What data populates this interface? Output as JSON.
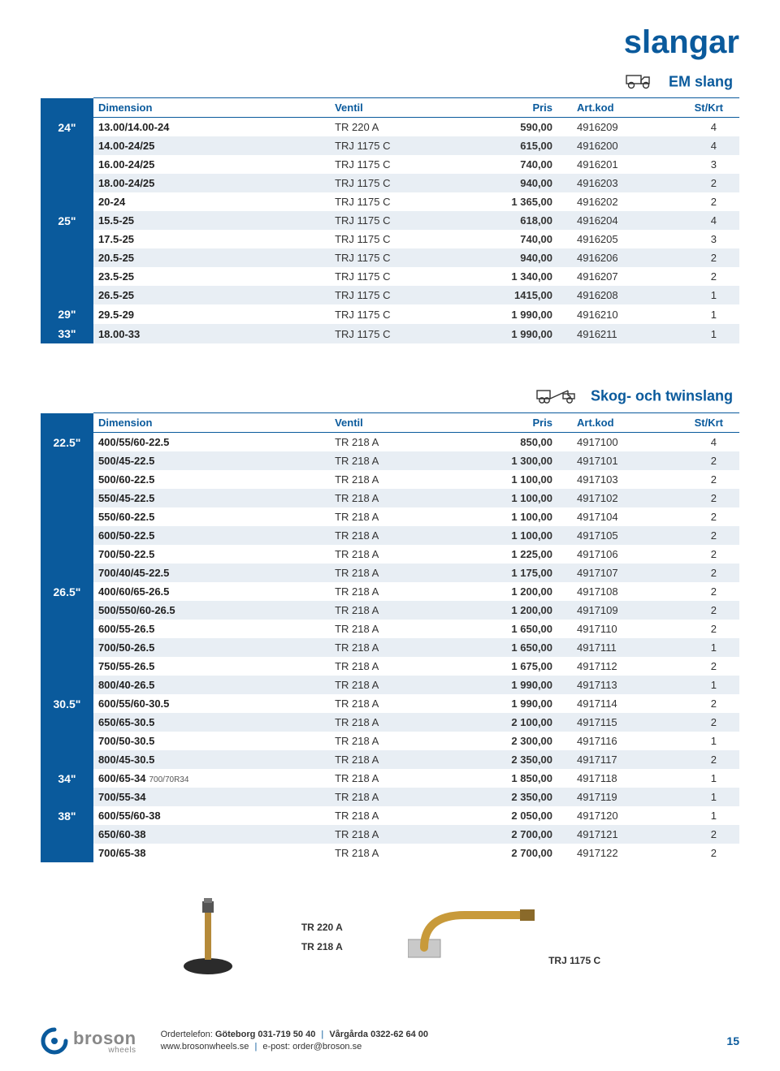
{
  "page_title": "slangar",
  "colors": {
    "brand": "#0a5a9c",
    "stripe_odd": "#e8eef4",
    "stripe_even": "#ffffff",
    "text": "#333333"
  },
  "tables": [
    {
      "section_label": "EM slang",
      "icon": "dump-truck",
      "columns": [
        "Dimension",
        "Ventil",
        "Pris",
        "Art.kod",
        "St/Krt"
      ],
      "groups": [
        {
          "size": "24\"",
          "rows": [
            {
              "dim": "13.00/14.00-24",
              "vent": "TR 220 A",
              "pris": "590,00",
              "art": "4916209",
              "st": "4"
            },
            {
              "dim": "14.00-24/25",
              "vent": "TRJ 1175 C",
              "pris": "615,00",
              "art": "4916200",
              "st": "4"
            },
            {
              "dim": "16.00-24/25",
              "vent": "TRJ 1175 C",
              "pris": "740,00",
              "art": "4916201",
              "st": "3"
            },
            {
              "dim": "18.00-24/25",
              "vent": "TRJ 1175 C",
              "pris": "940,00",
              "art": "4916203",
              "st": "2"
            },
            {
              "dim": "20-24",
              "vent": "TRJ 1175 C",
              "pris": "1 365,00",
              "art": "4916202",
              "st": "2"
            }
          ]
        },
        {
          "size": "25\"",
          "rows": [
            {
              "dim": "15.5-25",
              "vent": "TRJ 1175 C",
              "pris": "618,00",
              "art": "4916204",
              "st": "4"
            },
            {
              "dim": "17.5-25",
              "vent": "TRJ 1175 C",
              "pris": "740,00",
              "art": "4916205",
              "st": "3"
            },
            {
              "dim": "20.5-25",
              "vent": "TRJ 1175 C",
              "pris": "940,00",
              "art": "4916206",
              "st": "2"
            },
            {
              "dim": "23.5-25",
              "vent": "TRJ 1175 C",
              "pris": "1 340,00",
              "art": "4916207",
              "st": "2"
            },
            {
              "dim": "26.5-25",
              "vent": "TRJ 1175 C",
              "pris": "1415,00",
              "art": "4916208",
              "st": "1"
            }
          ]
        },
        {
          "size": "29\"",
          "rows": [
            {
              "dim": "29.5-29",
              "vent": "TRJ 1175 C",
              "pris": "1 990,00",
              "art": "4916210",
              "st": "1"
            }
          ]
        },
        {
          "size": "33\"",
          "rows": [
            {
              "dim": "18.00-33",
              "vent": "TRJ 1175 C",
              "pris": "1 990,00",
              "art": "4916211",
              "st": "1"
            }
          ]
        }
      ]
    },
    {
      "section_label": "Skog- och twinslang",
      "icon": "tow-truck",
      "columns": [
        "Dimension",
        "Ventil",
        "Pris",
        "Art.kod",
        "St/Krt"
      ],
      "groups": [
        {
          "size": "22.5\"",
          "rows": [
            {
              "dim": "400/55/60-22.5",
              "vent": "TR 218 A",
              "pris": "850,00",
              "art": "4917100",
              "st": "4"
            },
            {
              "dim": "500/45-22.5",
              "vent": "TR 218 A",
              "pris": "1 300,00",
              "art": "4917101",
              "st": "2"
            },
            {
              "dim": "500/60-22.5",
              "vent": "TR 218 A",
              "pris": "1 100,00",
              "art": "4917103",
              "st": "2"
            },
            {
              "dim": "550/45-22.5",
              "vent": "TR 218 A",
              "pris": "1 100,00",
              "art": "4917102",
              "st": "2"
            },
            {
              "dim": "550/60-22.5",
              "vent": "TR 218 A",
              "pris": "1 100,00",
              "art": "4917104",
              "st": "2"
            },
            {
              "dim": "600/50-22.5",
              "vent": "TR 218 A",
              "pris": "1 100,00",
              "art": "4917105",
              "st": "2"
            },
            {
              "dim": "700/50-22.5",
              "vent": "TR 218 A",
              "pris": "1 225,00",
              "art": "4917106",
              "st": "2"
            },
            {
              "dim": "700/40/45-22.5",
              "vent": "TR 218 A",
              "pris": "1 175,00",
              "art": "4917107",
              "st": "2"
            }
          ]
        },
        {
          "size": "26.5\"",
          "rows": [
            {
              "dim": "400/60/65-26.5",
              "vent": "TR 218 A",
              "pris": "1 200,00",
              "art": "4917108",
              "st": "2"
            },
            {
              "dim": "500/550/60-26.5",
              "vent": "TR 218 A",
              "pris": "1 200,00",
              "art": "4917109",
              "st": "2"
            },
            {
              "dim": "600/55-26.5",
              "vent": "TR 218 A",
              "pris": "1 650,00",
              "art": "4917110",
              "st": "2"
            },
            {
              "dim": "700/50-26.5",
              "vent": "TR 218 A",
              "pris": "1 650,00",
              "art": "4917111",
              "st": "1"
            },
            {
              "dim": "750/55-26.5",
              "vent": "TR 218 A",
              "pris": "1 675,00",
              "art": "4917112",
              "st": "2"
            },
            {
              "dim": "800/40-26.5",
              "vent": "TR 218 A",
              "pris": "1 990,00",
              "art": "4917113",
              "st": "1"
            }
          ]
        },
        {
          "size": "30.5\"",
          "rows": [
            {
              "dim": "600/55/60-30.5",
              "vent": "TR 218 A",
              "pris": "1 990,00",
              "art": "4917114",
              "st": "2"
            },
            {
              "dim": "650/65-30.5",
              "vent": "TR 218 A",
              "pris": "2 100,00",
              "art": "4917115",
              "st": "2"
            },
            {
              "dim": "700/50-30.5",
              "vent": "TR 218 A",
              "pris": "2 300,00",
              "art": "4917116",
              "st": "1"
            },
            {
              "dim": "800/45-30.5",
              "vent": "TR 218 A",
              "pris": "2 350,00",
              "art": "4917117",
              "st": "2"
            }
          ]
        },
        {
          "size": "34\"",
          "rows": [
            {
              "dim": "600/65-34",
              "subnote": "700/70R34",
              "vent": "TR 218 A",
              "pris": "1 850,00",
              "art": "4917118",
              "st": "1"
            },
            {
              "dim": "700/55-34",
              "vent": "TR 218 A",
              "pris": "2 350,00",
              "art": "4917119",
              "st": "1"
            }
          ]
        },
        {
          "size": "38\"",
          "rows": [
            {
              "dim": "600/55/60-38",
              "vent": "TR 218 A",
              "pris": "2 050,00",
              "art": "4917120",
              "st": "1"
            },
            {
              "dim": "650/60-38",
              "vent": "TR 218 A",
              "pris": "2 700,00",
              "art": "4917121",
              "st": "2"
            },
            {
              "dim": "700/65-38",
              "vent": "TR 218 A",
              "pris": "2 700,00",
              "art": "4917122",
              "st": "2"
            }
          ]
        }
      ]
    }
  ],
  "valve_labels": {
    "a": "TR 220 A",
    "b": "TR 218 A",
    "c": "TRJ 1175 C"
  },
  "footer": {
    "brand": "broson",
    "brand_sub": "wheels",
    "line1_pre": "Ordertelefon: ",
    "line1_a": "Göteborg 031-719 50 40",
    "line1_b": "Vårgårda 0322-62 64 00",
    "line2_a": "www.brosonwheels.se",
    "line2_b": "e-post: order@broson.se",
    "page": "15"
  }
}
